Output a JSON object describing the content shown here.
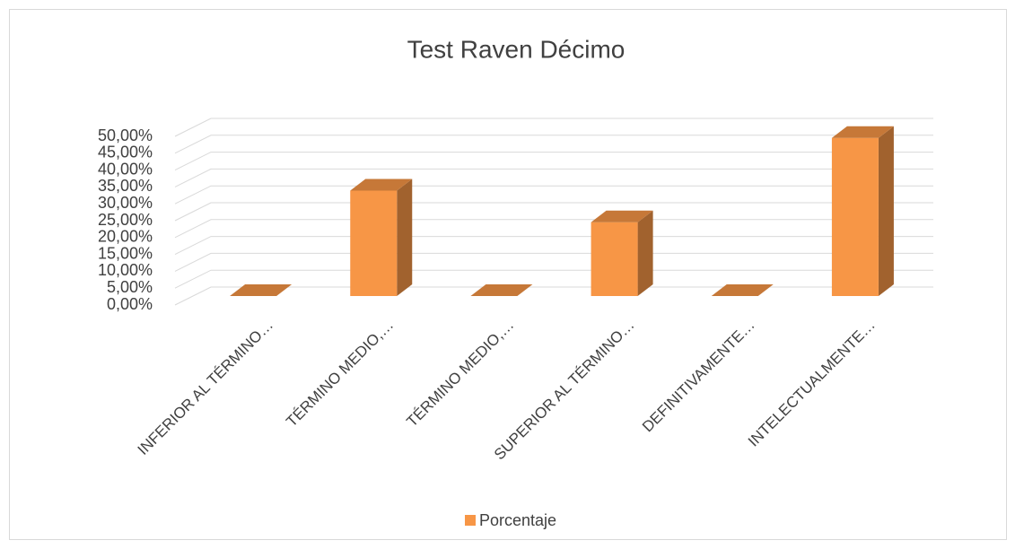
{
  "chart_data": {
    "type": "bar3d",
    "title": "Test Raven Décimo",
    "categories": [
      "INFERIOR AL TÉRMINO…",
      "TÉRMINO MEDIO,…",
      "TÉRMINO MEDIO,…",
      "SUPERIOR AL TÉRMINO…",
      "DEFINITIVAMENTE…",
      "INTELECTUALMENTE…"
    ],
    "series": [
      {
        "name": "Porcentaje",
        "color": "#f79646",
        "values": [
          0,
          31.25,
          0,
          21.88,
          0,
          46.88
        ]
      }
    ],
    "ylim": [
      0,
      50
    ],
    "yticks": [
      {
        "value": 0,
        "label": "0,00%"
      },
      {
        "value": 5,
        "label": "5,00%"
      },
      {
        "value": 10,
        "label": "10,00%"
      },
      {
        "value": 15,
        "label": "15,00%"
      },
      {
        "value": 20,
        "label": "20,00%"
      },
      {
        "value": 25,
        "label": "25,00%"
      },
      {
        "value": 30,
        "label": "30,00%"
      },
      {
        "value": 35,
        "label": "35,00%"
      },
      {
        "value": 40,
        "label": "40,00%"
      },
      {
        "value": 45,
        "label": "45,00%"
      },
      {
        "value": 50,
        "label": "50,00%"
      }
    ],
    "grid": true,
    "legend": "bottom"
  }
}
